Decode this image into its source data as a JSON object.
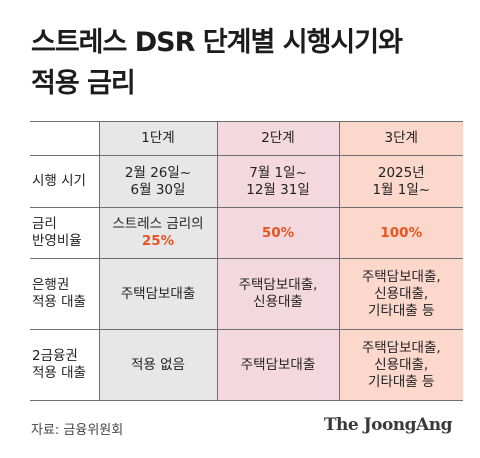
{
  "title": {
    "line1": "스트레스 DSR 단계별 시행시기와",
    "line2": "적용 금리"
  },
  "table": {
    "header": {
      "empty": "",
      "stage1": "1단계",
      "stage2": "2단계",
      "stage3": "3단계"
    },
    "rows": {
      "period": {
        "label": [
          "시행 시기"
        ],
        "stage1": [
          "2월 26일~",
          "6월 30일"
        ],
        "stage2": [
          "7월 1일~",
          "12월 31일"
        ],
        "stage3": [
          "2025년",
          "1월 1일~"
        ]
      },
      "rate": {
        "label": [
          "금리",
          "반영비율"
        ],
        "stage1_text": "스트레스 금리의",
        "stage1_value": "25%",
        "stage2_value": "50%",
        "stage3_value": "100%"
      },
      "bank": {
        "label": [
          "은행권",
          "적용 대출"
        ],
        "stage1": [
          "주택담보대출"
        ],
        "stage2": [
          "주택담보대출,",
          "신용대출"
        ],
        "stage3": [
          "주택담보대출,",
          "신용대출,",
          "기타대출 등"
        ]
      },
      "second_tier": {
        "label": [
          "2금융권",
          "적용 대출"
        ],
        "stage1": [
          "적용 없음"
        ],
        "stage2": [
          "주택담보대출"
        ],
        "stage3": [
          "주택담보대출,",
          "신용대출,",
          "기타대출 등"
        ]
      }
    }
  },
  "colors": {
    "stage1_bg": "#e7e7e7",
    "stage2_bg": "#f4d8df",
    "stage3_bg": "#fbd7cc",
    "accent": "#e9531e"
  },
  "footer": {
    "source": "자료: 금융위원회",
    "logo": "The JoongAng"
  }
}
